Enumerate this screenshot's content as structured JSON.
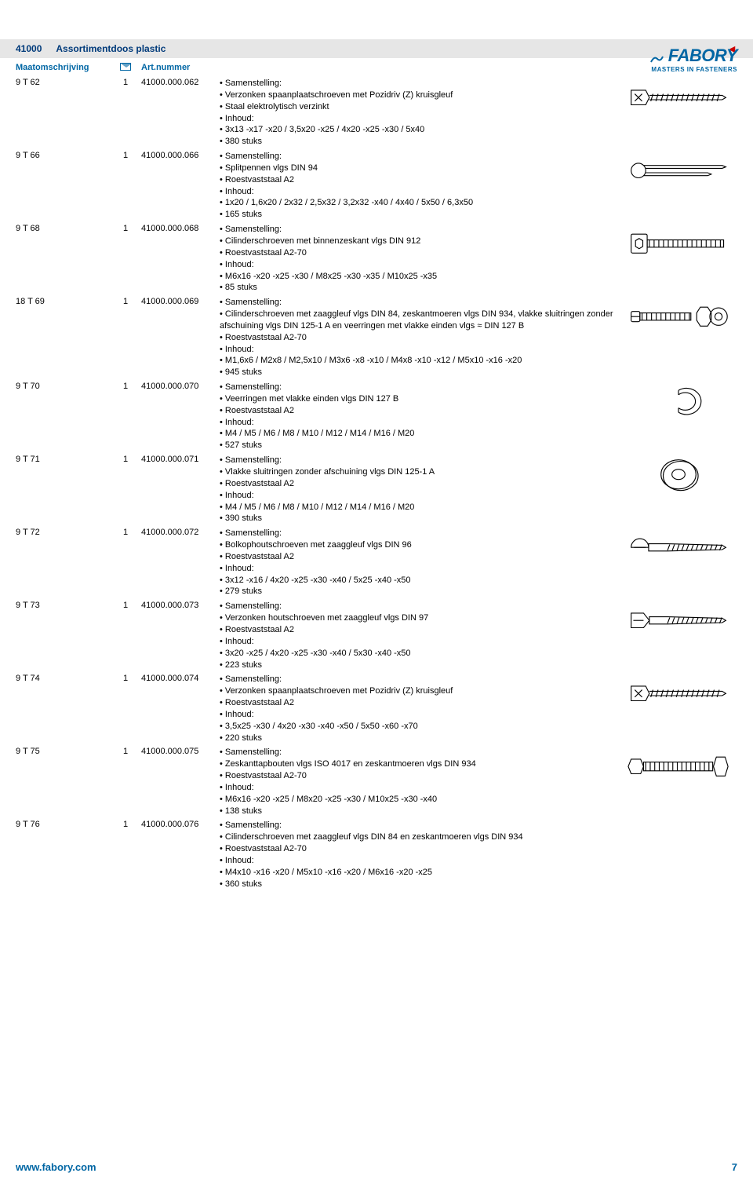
{
  "brand": {
    "name": "FABORY",
    "tagline": "MASTERS IN FASTENERS"
  },
  "header": {
    "code": "41000",
    "title": "Assortimentdoos plastic"
  },
  "columns": {
    "size": "Maatomschrijving",
    "art": "Art.nummer"
  },
  "footer": {
    "url": "www.fabory.com",
    "page": "7"
  },
  "rows": [
    {
      "size": "9 T 62",
      "qty": "1",
      "art": "41000.000.062",
      "lines": [
        "Samenstelling:",
        "Verzonken spaanplaatschroeven met Pozidriv (Z) kruisgleuf",
        "Staal elektrolytisch verzinkt",
        "Inhoud:",
        "3x13 -x17 -x20 / 3,5x20 -x25 / 4x20 -x25 -x30 / 5x40",
        "380 stuks"
      ],
      "image": "screw_countersunk"
    },
    {
      "size": "9 T 66",
      "qty": "1",
      "art": "41000.000.066",
      "lines": [
        "Samenstelling:",
        "Splitpennen vlgs DIN 94",
        "Roestvaststaal A2",
        "Inhoud:",
        "1x20 / 1,6x20 / 2x32 / 2,5x32 / 3,2x32 -x40 / 4x40 / 5x50 / 6,3x50",
        "165 stuks"
      ],
      "image": "cotter_pin"
    },
    {
      "size": "9 T 68",
      "qty": "1",
      "art": "41000.000.068",
      "lines": [
        "Samenstelling:",
        "Cilinderschroeven met binnenzeskant vlgs DIN 912",
        "Roestvaststaal A2-70",
        "Inhoud:",
        "M6x16 -x20 -x25 -x30 / M8x25 -x30 -x35 / M10x25 -x35",
        "85 stuks"
      ],
      "image": "socket_head"
    },
    {
      "size": "18 T 69",
      "qty": "1",
      "art": "41000.000.069",
      "lines": [
        "Samenstelling:",
        "Cilinderschroeven met zaaggleuf vlgs DIN 84, zeskantmoeren vlgs DIN 934, vlakke sluitringen zonder afschuining vlgs DIN 125-1 A en veerringen met vlakke einden vlgs ≈ DIN 127 B",
        "Roestvaststaal A2-70",
        "Inhoud:",
        "M1,6x6 / M2x8 / M2,5x10 / M3x6 -x8 -x10 / M4x8 -x10 -x12 / M5x10 -x16 -x20",
        "945 stuks"
      ],
      "image": "hex_nut_washer"
    },
    {
      "size": "9 T 70",
      "qty": "1",
      "art": "41000.000.070",
      "lines": [
        "Samenstelling:",
        "Veerringen met vlakke einden vlgs DIN 127 B",
        "Roestvaststaal A2",
        "Inhoud:",
        "M4 / M5 / M6 / M8 / M10 / M12 / M14 / M16 / M20",
        "527 stuks"
      ],
      "image": "spring_washer"
    },
    {
      "size": "9 T 71",
      "qty": "1",
      "art": "41000.000.071",
      "lines": [
        "Samenstelling:",
        "Vlakke sluitringen zonder afschuining vlgs DIN 125-1 A",
        "Roestvaststaal A2",
        "Inhoud:",
        "M4 / M5 / M6 / M8 / M10 / M12 / M14 / M16 / M20",
        "390 stuks"
      ],
      "image": "flat_washer"
    },
    {
      "size": "9 T 72",
      "qty": "1",
      "art": "41000.000.072",
      "lines": [
        "Samenstelling:",
        "Bolkophoutschroeven met zaaggleuf vlgs DIN 96",
        "Roestvaststaal A2",
        "Inhoud:",
        "3x12 -x16 / 4x20 -x25 -x30 -x40 / 5x25 -x40 -x50",
        "279 stuks"
      ],
      "image": "round_head_wood"
    },
    {
      "size": "9 T 73",
      "qty": "1",
      "art": "41000.000.073",
      "lines": [
        "Samenstelling:",
        "Verzonken houtschroeven met zaaggleuf vlgs DIN 97",
        "Roestvaststaal A2",
        "Inhoud:",
        "3x20 -x25 / 4x20 -x25 -x30 -x40 / 5x30 -x40 -x50",
        "223 stuks"
      ],
      "image": "flat_wood_screw"
    },
    {
      "size": "9 T 74",
      "qty": "1",
      "art": "41000.000.074",
      "lines": [
        "Samenstelling:",
        "Verzonken spaanplaatschroeven met Pozidriv (Z) kruisgleuf",
        "Roestvaststaal A2",
        "Inhoud:",
        "3,5x25 -x30 / 4x20 -x30 -x40 -x50 / 5x50 -x60 -x70",
        "220 stuks"
      ],
      "image": "screw_countersunk2"
    },
    {
      "size": "9 T 75",
      "qty": "1",
      "art": "41000.000.075",
      "lines": [
        "Samenstelling:",
        "Zeskanttapbouten vlgs ISO 4017 en zeskantmoeren vlgs DIN 934",
        "Roestvaststaal A2-70",
        "Inhoud:",
        "M6x16 -x20 -x25 / M8x20 -x25 -x30 / M10x25 -x30 -x40",
        "138 stuks"
      ],
      "image": "hex_bolt"
    },
    {
      "size": "9 T 76",
      "qty": "1",
      "art": "41000.000.076",
      "lines": [
        "Samenstelling:",
        "Cilinderschroeven met zaaggleuf vlgs DIN 84 en zeskantmoeren vlgs DIN 934",
        "Roestvaststaal A2-70",
        "Inhoud:",
        "M4x10 -x16 -x20 / M5x10 -x16 -x20 / M6x16 -x20 -x25",
        "360 stuks"
      ],
      "image": null
    }
  ],
  "svg": {
    "stroke": "#000000",
    "fill": "none",
    "stroke_width": 1.2
  }
}
